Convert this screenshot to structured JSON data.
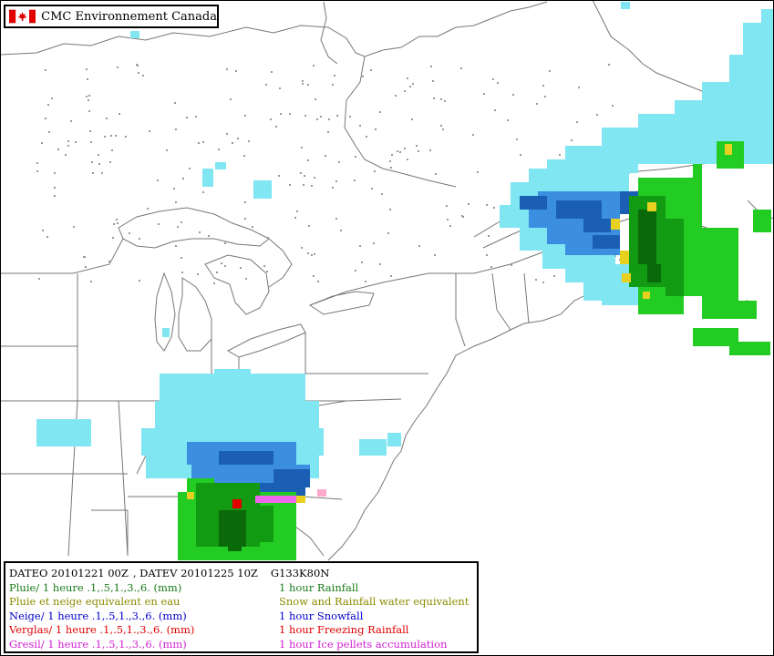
{
  "credit": {
    "org": "CMC  Environnement  Canada",
    "flag": "canada-flag"
  },
  "legend": {
    "header": {
      "dateo": "DATEO  20101221 00Z",
      "datev": ", DATEV  20101225 10Z",
      "grid": "G133K80N"
    },
    "rows": [
      {
        "fr": "Pluie/ 1 heure .1,.5,1.,3.,6. (mm)",
        "en": "1 hour Rainfall",
        "color": "#1a7a1a"
      },
      {
        "fr": "Pluie et neige equivalent en eau",
        "en": "Snow and Rainfall water equivalent",
        "color": "#8b8b00"
      },
      {
        "fr": "Neige/ 1 heure .1,.5,1.,3.,6. (mm)",
        "en": " 1 hour Snowfall",
        "color": "#0000cc"
      },
      {
        "fr": "Verglas/ 1 heure .1,.5,1.,3.,6. (mm)",
        "en": " 1 hour Freezing Rainfall",
        "color": "#e00000"
      },
      {
        "fr": "Gresil/ 1 heure .1,.5,1.,3.,6. (mm)",
        "en": "1 hour Ice pellets accumulation",
        "color": "#d020d0"
      }
    ]
  },
  "colors": {
    "snow_light": "#7fe6f2",
    "snow_mid": "#3c8fe0",
    "snow_heavy": "#1a5fb4",
    "rain_light": "#22cc22",
    "rain_mid": "#139a13",
    "rain_heavy": "#0a6a0a",
    "mixed": "#e8d020",
    "freezing": "#e00000",
    "pellets": "#ee66ee",
    "pellets_light": "#ffaacc",
    "boundary": "#777777"
  }
}
